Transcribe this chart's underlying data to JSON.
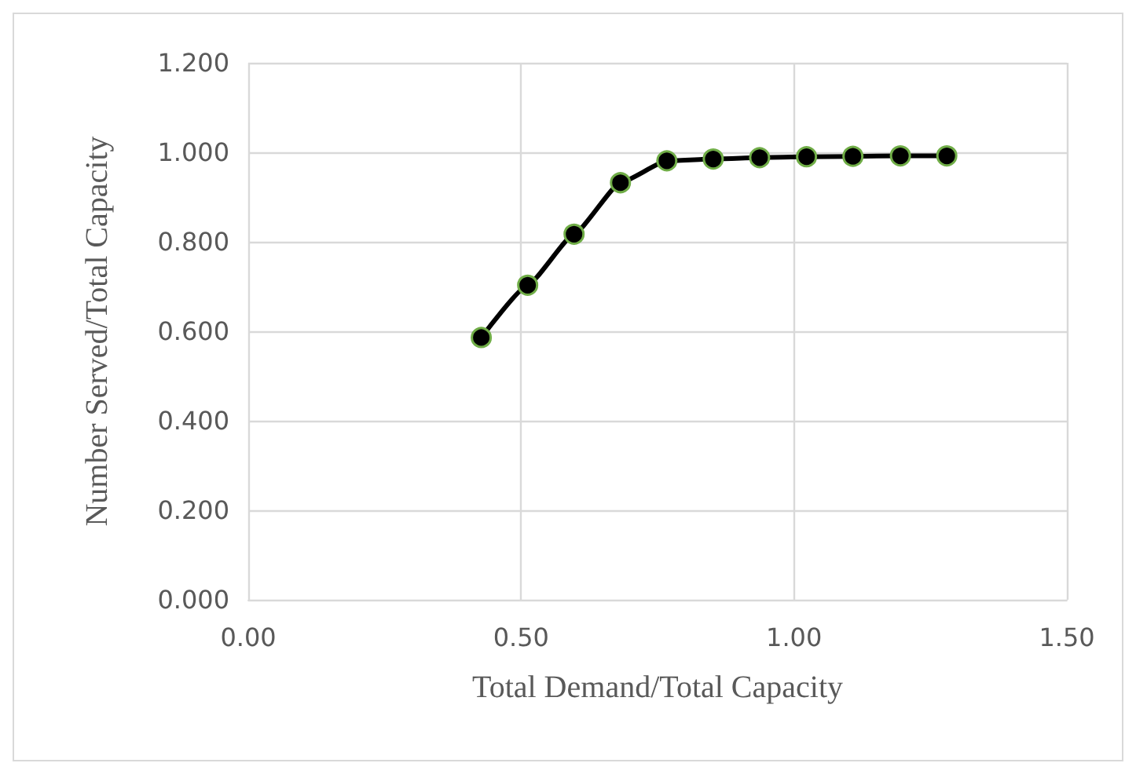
{
  "chart_data": {
    "type": "line",
    "xlabel": "Total Demand/Total Capacity",
    "ylabel": "Number Served/Total Capacity",
    "x": [
      0.427,
      0.512,
      0.597,
      0.682,
      0.767,
      0.852,
      0.937,
      1.023,
      1.108,
      1.195,
      1.28
    ],
    "series": [
      {
        "color": "#000000",
        "values": [
          0.586,
          0.703,
          0.817,
          0.932,
          0.981,
          0.985,
          0.988,
          0.99,
          0.991,
          0.992,
          0.992
        ]
      }
    ],
    "xlim": [
      0,
      1.5
    ],
    "xticks": [
      {
        "value": 0,
        "label": "0.00"
      },
      {
        "value": 0.5,
        "label": "0.50"
      },
      {
        "value": 1,
        "label": "1.00"
      },
      {
        "value": 1.5,
        "label": "1.50"
      }
    ],
    "ylim": [
      0,
      1.2
    ],
    "yticks": [
      {
        "value": 0,
        "label": "0.000"
      },
      {
        "value": 0.2,
        "label": "0.200"
      },
      {
        "value": 0.4,
        "label": "0.400"
      },
      {
        "value": 0.6,
        "label": "0.600"
      },
      {
        "value": 0.8,
        "label": "0.800"
      },
      {
        "value": 1,
        "label": "1.000"
      },
      {
        "value": 1.2,
        "label": "1.200"
      }
    ],
    "grid": true,
    "marker": "circle",
    "line_style": "solid"
  }
}
